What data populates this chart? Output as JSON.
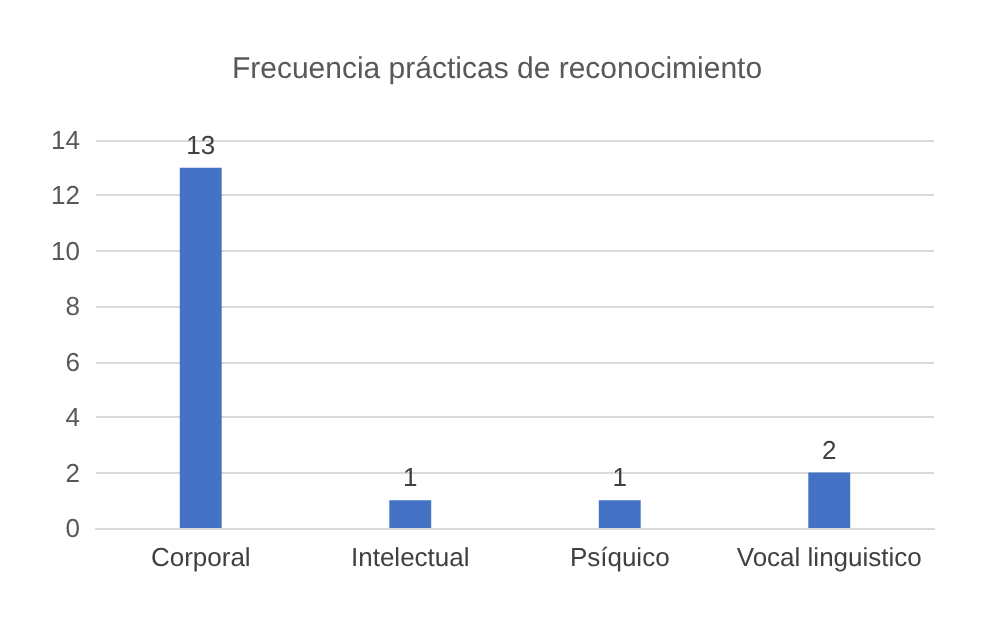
{
  "chart_data": {
    "type": "bar",
    "title": "Frecuencia prácticas de reconocimiento",
    "categories": [
      "Corporal",
      "Intelectual",
      "Psíquico",
      "Vocal linguistico"
    ],
    "values": [
      13,
      1,
      1,
      2
    ],
    "color": "#4472c4",
    "ylim": [
      0,
      14
    ],
    "yticks": [
      0,
      2,
      4,
      6,
      8,
      10,
      12,
      14
    ],
    "grid": "y",
    "data_labels": true
  }
}
